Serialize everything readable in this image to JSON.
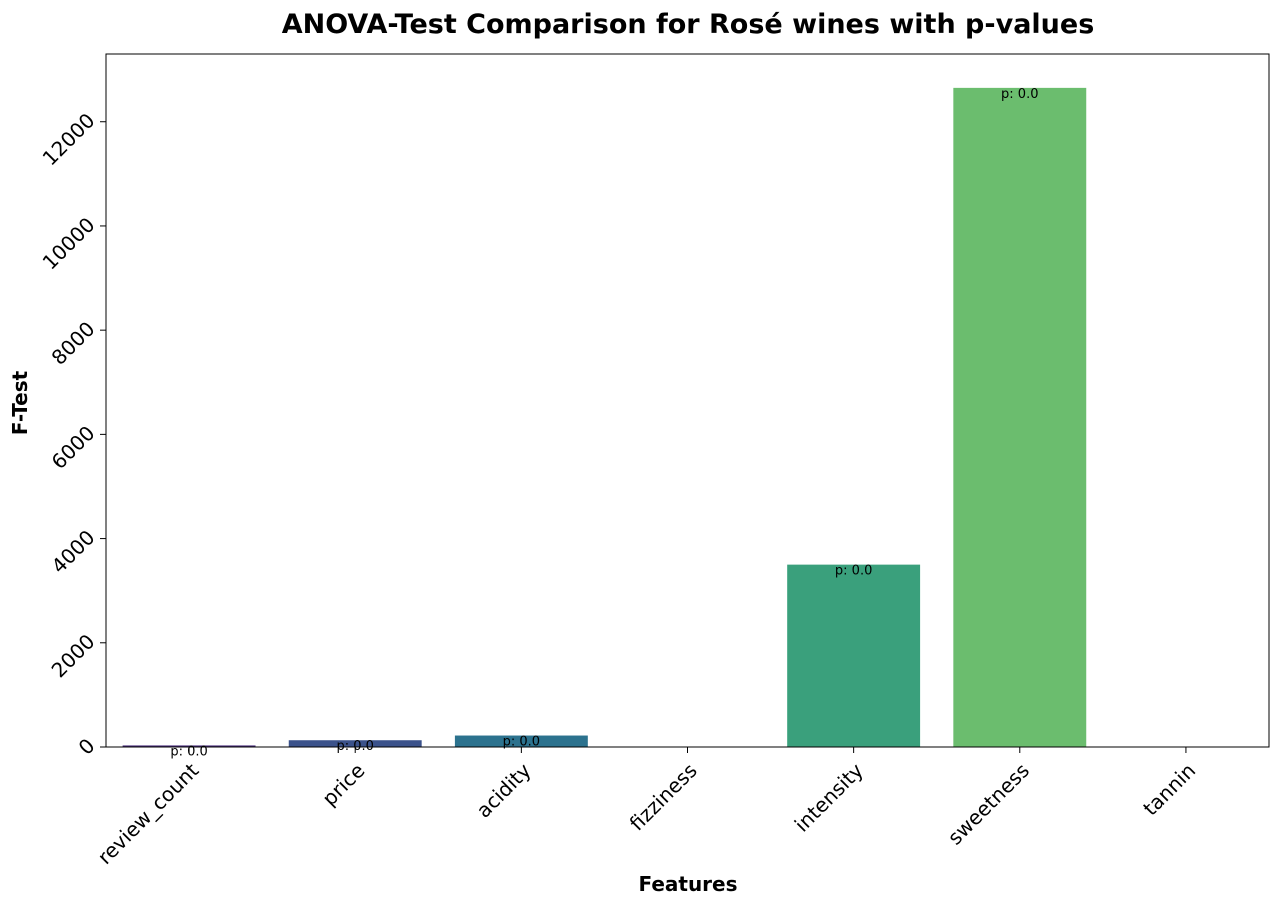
{
  "chart_data": {
    "type": "bar",
    "title": "ANOVA-Test Comparison for Rosé wines with p-values",
    "xlabel": "Features",
    "ylabel": "F-Test",
    "categories": [
      "review_count",
      "price",
      "acidity",
      "fizziness",
      "intensity",
      "sweetness",
      "tannin"
    ],
    "values": [
      30,
      130,
      220,
      0,
      3500,
      12650,
      0
    ],
    "bar_labels": [
      "p: 0.0",
      "p: 0.0",
      "p: 0.0",
      "",
      "p: 0.0",
      "p: 0.0",
      ""
    ],
    "colors": [
      "#472d7b",
      "#3b528b",
      "#2c728e",
      "#21918c",
      "#3aa07c",
      "#6bbd6e",
      "#b5de2b"
    ],
    "ylim": [
      0,
      13300
    ],
    "yticks": [
      0,
      2000,
      4000,
      6000,
      8000,
      10000,
      12000
    ],
    "ytick_labels": [
      "0",
      "2000",
      "4000",
      "6000",
      "8000",
      "10000",
      "12000"
    ],
    "grid": false,
    "legend": "none"
  }
}
